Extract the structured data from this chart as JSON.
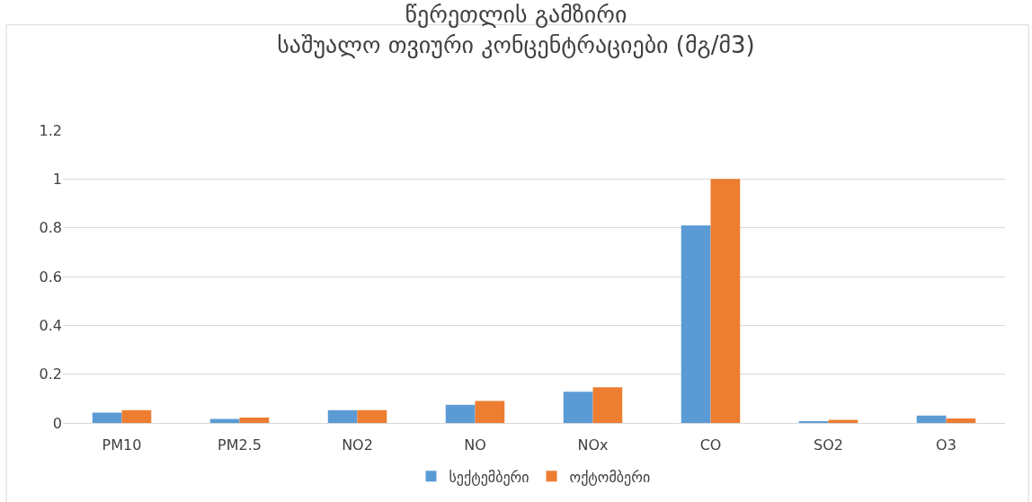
{
  "chart_data": {
    "type": "bar",
    "title": "წერეთლის გამზირი\nსაშუალო თვიური კონცენტრაციები (მგ/მ3)",
    "categories": [
      "PM10",
      "PM2.5",
      "NO2",
      "NO",
      "NOx",
      "CO",
      "SO2",
      "O3"
    ],
    "series": [
      {
        "name": "სექტემბერი",
        "color": "#5b9bd5",
        "values": [
          0.042,
          0.017,
          0.052,
          0.075,
          0.128,
          0.81,
          0.006,
          0.03
        ]
      },
      {
        "name": "ოქტომბერი",
        "color": "#ed7d31",
        "values": [
          0.052,
          0.022,
          0.052,
          0.09,
          0.146,
          1.0,
          0.013,
          0.018
        ]
      }
    ],
    "ylim": [
      0,
      1.2
    ],
    "yticks": [
      0,
      {
        "value": 0.2,
        "label": "0.2"
      },
      {
        "value": 0.4,
        "label": "0.4"
      },
      {
        "value": 0.6,
        "label": "0.6"
      },
      {
        "value": 0.8,
        "label": "0.8"
      },
      1,
      {
        "value": 1.2,
        "label": "1.2"
      }
    ],
    "grid": "y",
    "legend": "bottom"
  }
}
